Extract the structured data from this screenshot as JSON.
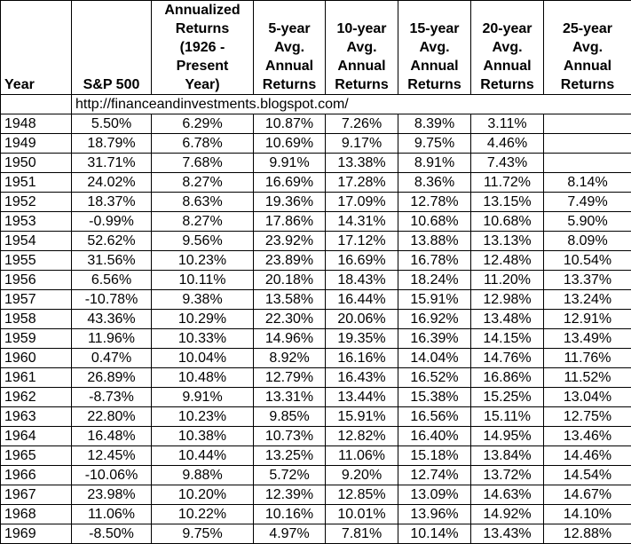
{
  "table": {
    "header": [
      "Year",
      "S&P 500",
      "Annualized\nReturns\n(1926 -\nPresent\nYear)",
      "5-year\nAvg.\nAnnual\nReturns",
      "10-year\nAvg.\nAnnual\nReturns",
      "15-year\nAvg.\nAnnual\nReturns",
      "20-year\nAvg.\nAnnual\nReturns",
      "25-year\nAvg.\nAnnual\nReturns"
    ],
    "source": "http://financeandinvestments.blogspot.com/",
    "rows": [
      [
        "1948",
        "5.50%",
        "6.29%",
        "10.87%",
        "7.26%",
        "8.39%",
        "3.11%",
        null
      ],
      [
        "1949",
        "18.79%",
        "6.78%",
        "10.69%",
        "9.17%",
        "9.75%",
        "4.46%",
        null
      ],
      [
        "1950",
        "31.71%",
        "7.68%",
        "9.91%",
        "13.38%",
        "8.91%",
        "7.43%",
        null
      ],
      [
        "1951",
        "24.02%",
        "8.27%",
        "16.69%",
        "17.28%",
        "8.36%",
        "11.72%",
        "8.14%"
      ],
      [
        "1952",
        "18.37%",
        "8.63%",
        "19.36%",
        "17.09%",
        "12.78%",
        "13.15%",
        "7.49%"
      ],
      [
        "1953",
        "-0.99%",
        "8.27%",
        "17.86%",
        "14.31%",
        "10.68%",
        "10.68%",
        "5.90%"
      ],
      [
        "1954",
        "52.62%",
        "9.56%",
        "23.92%",
        "17.12%",
        "13.88%",
        "13.13%",
        "8.09%"
      ],
      [
        "1955",
        "31.56%",
        "10.23%",
        "23.89%",
        "16.69%",
        "16.78%",
        "12.48%",
        "10.54%"
      ],
      [
        "1956",
        "6.56%",
        "10.11%",
        "20.18%",
        "18.43%",
        "18.24%",
        "11.20%",
        "13.37%"
      ],
      [
        "1957",
        "-10.78%",
        "9.38%",
        "13.58%",
        "16.44%",
        "15.91%",
        "12.98%",
        "13.24%"
      ],
      [
        "1958",
        "43.36%",
        "10.29%",
        "22.30%",
        "20.06%",
        "16.92%",
        "13.48%",
        "12.91%"
      ],
      [
        "1959",
        "11.96%",
        "10.33%",
        "14.96%",
        "19.35%",
        "16.39%",
        "14.15%",
        "13.49%"
      ],
      [
        "1960",
        "0.47%",
        "10.04%",
        "8.92%",
        "16.16%",
        "14.04%",
        "14.76%",
        "11.76%"
      ],
      [
        "1961",
        "26.89%",
        "10.48%",
        "12.79%",
        "16.43%",
        "16.52%",
        "16.86%",
        "11.52%"
      ],
      [
        "1962",
        "-8.73%",
        "9.91%",
        "13.31%",
        "13.44%",
        "15.38%",
        "15.25%",
        "13.04%"
      ],
      [
        "1963",
        "22.80%",
        "10.23%",
        "9.85%",
        "15.91%",
        "16.56%",
        "15.11%",
        "12.75%"
      ],
      [
        "1964",
        "16.48%",
        "10.38%",
        "10.73%",
        "12.82%",
        "16.40%",
        "14.95%",
        "13.46%"
      ],
      [
        "1965",
        "12.45%",
        "10.44%",
        "13.25%",
        "11.06%",
        "15.18%",
        "13.84%",
        "14.46%"
      ],
      [
        "1966",
        "-10.06%",
        "9.88%",
        "5.72%",
        "9.20%",
        "12.74%",
        "13.72%",
        "14.54%"
      ],
      [
        "1967",
        "23.98%",
        "10.20%",
        "12.39%",
        "12.85%",
        "13.09%",
        "14.63%",
        "14.67%"
      ],
      [
        "1968",
        "11.06%",
        "10.22%",
        "10.16%",
        "10.01%",
        "13.96%",
        "14.92%",
        "14.10%"
      ],
      [
        "1969",
        "-8.50%",
        "9.75%",
        "4.97%",
        "7.81%",
        "10.14%",
        "13.43%",
        "12.88%"
      ]
    ]
  }
}
